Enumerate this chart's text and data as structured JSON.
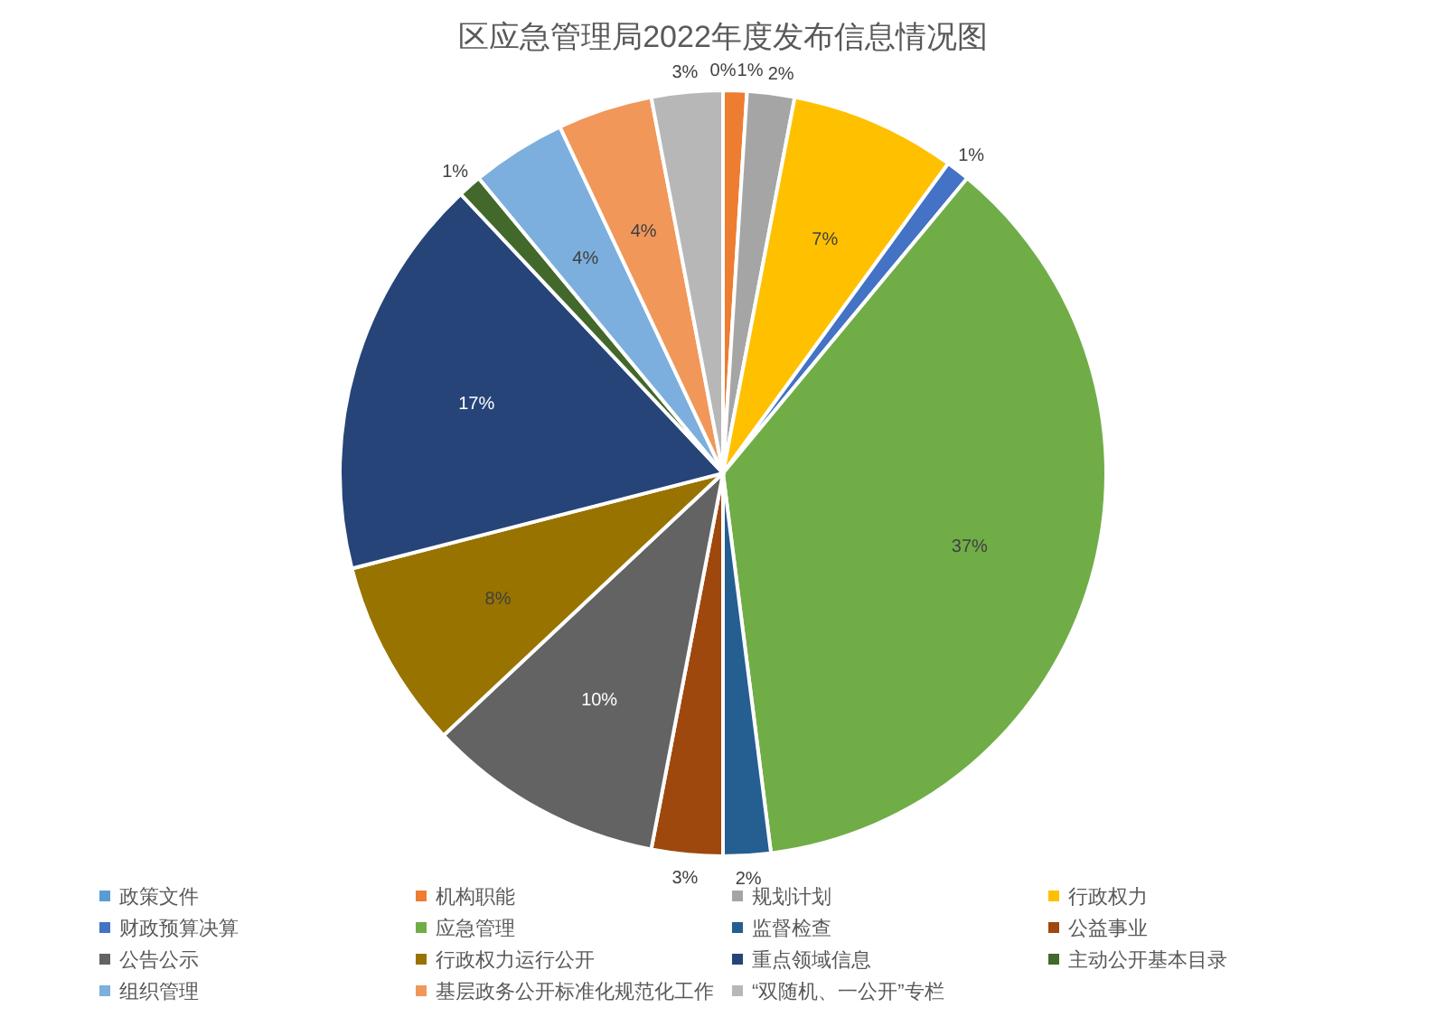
{
  "chart_data": {
    "type": "pie",
    "title": "区应急管理局2022年度发布信息情况图",
    "categories": [
      "政策文件",
      "机构职能",
      "规划计划",
      "行政权力",
      "财政预算决算",
      "应急管理",
      "监督检查",
      "公益事业",
      "公告公示",
      "行政权力运行公开",
      "重点领域信息",
      "主动公开基本目录",
      "组织管理",
      "基层政务公开标准化规范化工作",
      "“双随机、一公开”专栏"
    ],
    "values": [
      0,
      1,
      2,
      7,
      1,
      37,
      2,
      3,
      10,
      8,
      17,
      1,
      4,
      4,
      3
    ],
    "value_labels": [
      "0%",
      "1%",
      "2%",
      "7%",
      "1%",
      "37%",
      "2%",
      "3%",
      "10%",
      "8%",
      "17%",
      "1%",
      "4%",
      "4%",
      "3%"
    ],
    "colors": [
      "#5b9bd5",
      "#ed7d31",
      "#a5a5a5",
      "#ffc000",
      "#4472c4",
      "#70ad47",
      "#255e91",
      "#9e480e",
      "#636363",
      "#997300",
      "#264478",
      "#43682b",
      "#7cafdd",
      "#f1975a",
      "#b7b7b7"
    ],
    "legend": "bottom"
  }
}
